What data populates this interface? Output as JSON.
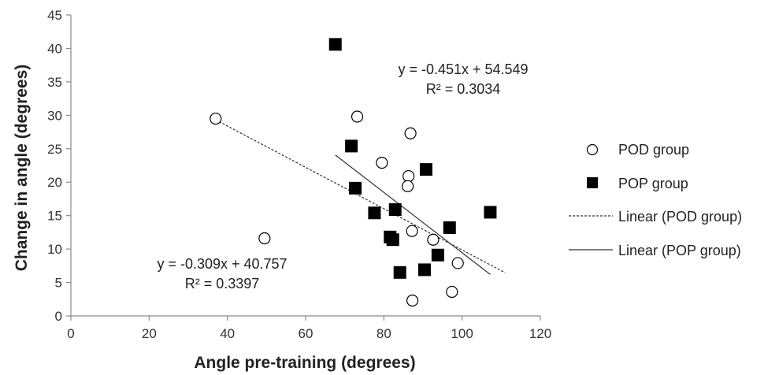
{
  "chart_data": {
    "type": "scatter",
    "xlabel": "Angle pre-training (degrees)",
    "ylabel": "Change in angle (degrees)",
    "xlim": [
      0,
      120
    ],
    "ylim": [
      0,
      45
    ],
    "xticks": [
      "0",
      "20",
      "40",
      "60",
      "80",
      "100",
      "120"
    ],
    "yticks": [
      "0",
      "5",
      "10",
      "15",
      "20",
      "25",
      "30",
      "35",
      "40",
      "45"
    ],
    "grid": false,
    "legend_position": "right",
    "series": [
      {
        "name": "POD group",
        "marker": "open-circle",
        "points": [
          [
            37,
            29.5
          ],
          [
            49.5,
            11.6
          ],
          [
            73.2,
            29.8
          ],
          [
            79.5,
            22.9
          ],
          [
            86.8,
            27.3
          ],
          [
            86.3,
            20.9
          ],
          [
            86.1,
            19.4
          ],
          [
            87.2,
            12.7
          ],
          [
            92.6,
            11.4
          ],
          [
            98.9,
            7.9
          ],
          [
            97.4,
            3.6
          ],
          [
            87.3,
            2.3
          ]
        ]
      },
      {
        "name": "POP group",
        "marker": "filled-square",
        "points": [
          [
            67.6,
            40.6
          ],
          [
            71.7,
            25.4
          ],
          [
            72.7,
            19.1
          ],
          [
            77.6,
            15.4
          ],
          [
            82.9,
            15.9
          ],
          [
            81.6,
            11.8
          ],
          [
            82.3,
            11.4
          ],
          [
            90.8,
            21.9
          ],
          [
            96.8,
            13.2
          ],
          [
            107.2,
            15.5
          ],
          [
            93.8,
            9.1
          ],
          [
            90.4,
            6.9
          ],
          [
            84.1,
            6.5
          ]
        ]
      }
    ],
    "trendlines": [
      {
        "name": "Linear (POD group)",
        "style": "dashed",
        "slope": -0.309,
        "intercept": 40.757,
        "x_range": [
          37,
          111
        ],
        "equation": "y = -0.309x + 40.757",
        "r2": "R² = 0.3397"
      },
      {
        "name": "Linear (POP group)",
        "style": "solid",
        "slope": -0.451,
        "intercept": 54.549,
        "x_range": [
          67.6,
          107.2
        ],
        "equation": "y = -0.451x + 54.549",
        "r2": "R² = 0.3034"
      }
    ]
  },
  "colors": {
    "axis": "#8a8a8a",
    "marker_fill": "#000000",
    "marker_open_fill": "#ffffff",
    "trend": "#333333"
  }
}
